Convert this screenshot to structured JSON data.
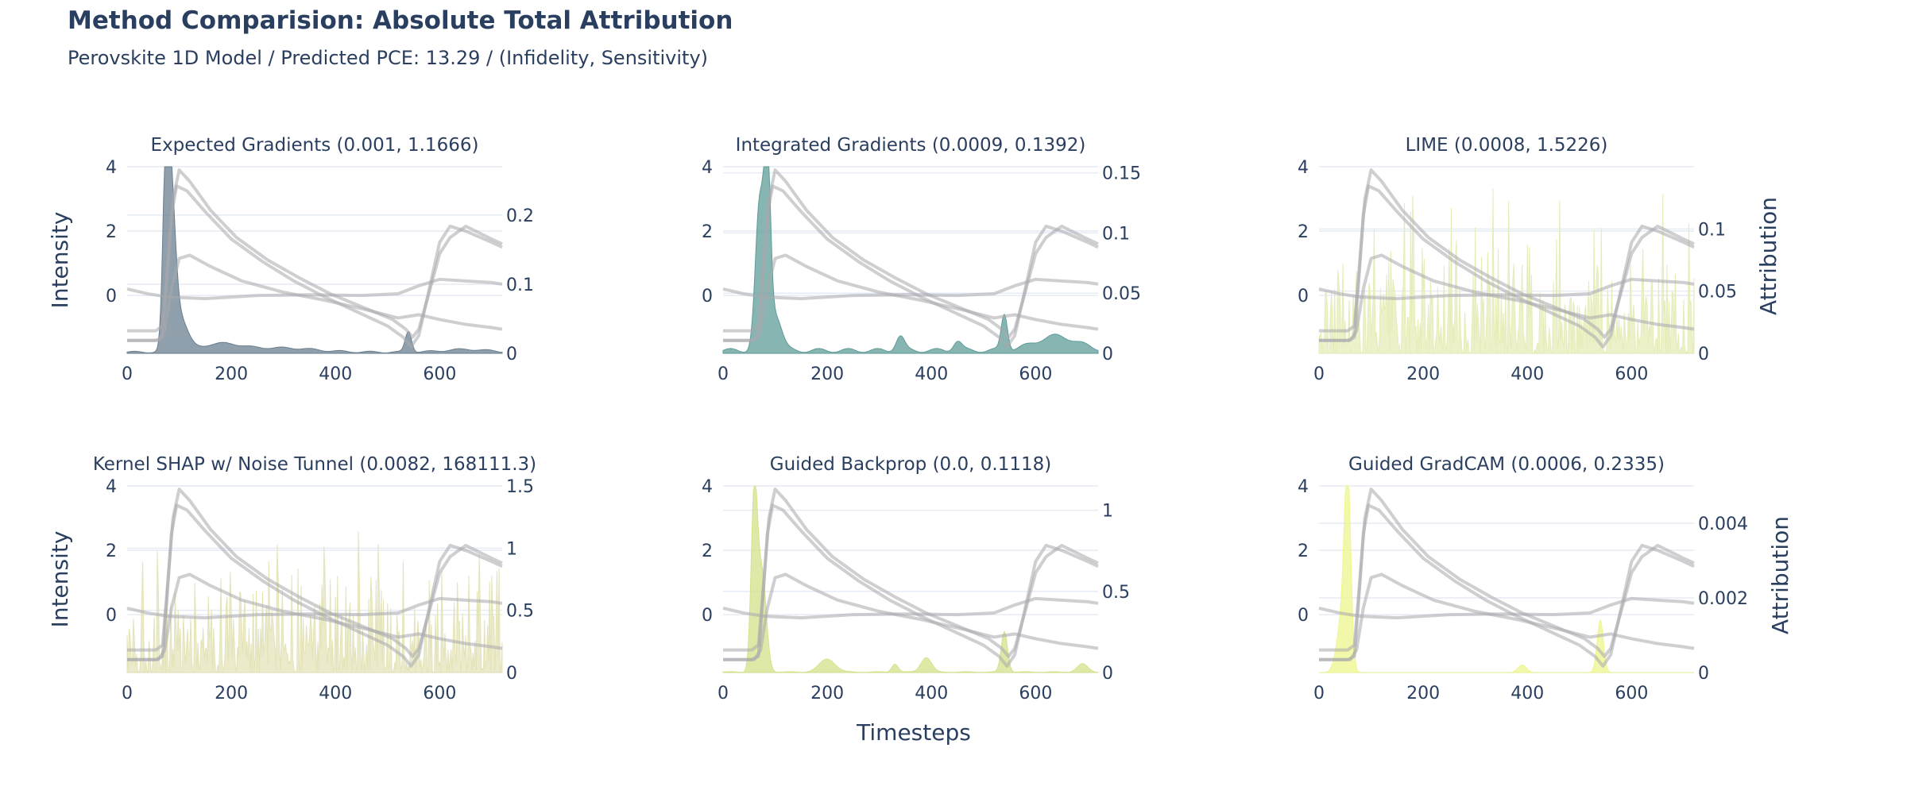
{
  "title": "Method Comparision: Absolute Total Attribution",
  "subtitle": "Perovskite 1D Model / Predicted PCE: 13.29 / (Infidelity, Sensitivity)",
  "xlabel": "Timesteps",
  "left_axis_label": "Intensity",
  "right_axis_label": "Attribution",
  "chart_data": [
    {
      "type": "area",
      "title": "Expected Gradients (0.001, 1.1666)",
      "xlim": [
        0,
        720
      ],
      "ylim_left": [
        -1.8,
        4
      ],
      "ylim_right": [
        0,
        0.27
      ],
      "xticks": [
        0,
        200,
        400,
        600
      ],
      "yticks_left": [
        0,
        2,
        4
      ],
      "yticks_right": [
        0,
        0.1,
        0.2
      ],
      "attribution_color": "#6a7f8f",
      "attribution_peaks": [
        [
          75,
          0.26,
          6
        ],
        [
          85,
          0.19,
          8
        ],
        [
          100,
          0.05,
          15
        ],
        [
          180,
          0.012,
          40
        ],
        [
          300,
          0.006,
          60
        ],
        [
          540,
          0.03,
          6
        ],
        [
          650,
          0.004,
          40
        ]
      ],
      "attribution_floor": 0.003
    },
    {
      "type": "area",
      "title": "Integrated Gradients (0.0009, 0.1392)",
      "xlim": [
        0,
        720
      ],
      "ylim_left": [
        -1.8,
        4
      ],
      "ylim_right": [
        0,
        0.155
      ],
      "xticks": [
        0,
        200,
        400,
        600
      ],
      "yticks_left": [
        0,
        2,
        4
      ],
      "yticks_right": [
        0,
        0.05,
        0.1,
        0.15
      ],
      "attribution_color": "#5f9c98",
      "attribution_peaks": [
        [
          70,
          0.12,
          8
        ],
        [
          85,
          0.15,
          6
        ],
        [
          100,
          0.03,
          12
        ],
        [
          340,
          0.012,
          8
        ],
        [
          450,
          0.008,
          8
        ],
        [
          540,
          0.03,
          6
        ],
        [
          640,
          0.012,
          40
        ]
      ],
      "attribution_floor": 0.004
    },
    {
      "type": "area",
      "title": "LIME (0.0008, 1.5226)",
      "xlim": [
        0,
        720
      ],
      "ylim_left": [
        -1.8,
        4
      ],
      "ylim_right": [
        0,
        0.15
      ],
      "xticks": [
        0,
        200,
        400,
        600
      ],
      "yticks_left": [
        0,
        2,
        4
      ],
      "yticks_right": [
        0,
        0.05,
        0.1
      ],
      "attribution_color": "#e6ecb8",
      "attribution_peaks": [],
      "attribution_noise": 0.14
    },
    {
      "type": "area",
      "title": "Kernel SHAP w/ Noise Tunnel (0.0082, 168111.3)",
      "xlim": [
        0,
        720
      ],
      "ylim_left": [
        -1.8,
        4
      ],
      "ylim_right": [
        0,
        1.5
      ],
      "xticks": [
        0,
        200,
        400,
        600
      ],
      "yticks_left": [
        0,
        2,
        4
      ],
      "yticks_right": [
        0,
        0.5,
        1,
        1.5
      ],
      "attribution_color": "#e4e3b8",
      "attribution_peaks": [],
      "attribution_noise": 1.2
    },
    {
      "type": "area",
      "title": "Guided Backprop (0.0, 0.1118)",
      "xlim": [
        0,
        720
      ],
      "ylim_left": [
        -1.8,
        4
      ],
      "ylim_right": [
        0,
        1.15
      ],
      "xticks": [
        0,
        200,
        400,
        600
      ],
      "yticks_left": [
        0,
        2,
        4
      ],
      "yticks_right": [
        0,
        0.5,
        1
      ],
      "attribution_color": "#d4e28a",
      "attribution_peaks": [
        [
          60,
          1.1,
          6
        ],
        [
          75,
          0.6,
          8
        ],
        [
          200,
          0.08,
          15
        ],
        [
          330,
          0.05,
          6
        ],
        [
          390,
          0.09,
          10
        ],
        [
          540,
          0.25,
          6
        ],
        [
          690,
          0.05,
          10
        ]
      ],
      "attribution_floor": 0.005
    },
    {
      "type": "area",
      "title": "Guided GradCAM (0.0006, 0.2335)",
      "xlim": [
        0,
        720
      ],
      "ylim_left": [
        -1.8,
        4
      ],
      "ylim_right": [
        0,
        0.005
      ],
      "xticks": [
        0,
        200,
        400,
        600
      ],
      "yticks_left": [
        0,
        2,
        4
      ],
      "yticks_right": [
        0,
        0.002,
        0.004
      ],
      "attribution_color": "#eef58e",
      "attribution_peaks": [
        [
          55,
          0.0048,
          6
        ],
        [
          45,
          0.0015,
          10
        ],
        [
          390,
          0.0002,
          8
        ],
        [
          540,
          0.0014,
          6
        ]
      ],
      "attribution_floor": 0
    }
  ],
  "intensity_traces": [
    {
      "x": [
        0,
        55,
        68,
        76,
        85,
        95,
        115,
        150,
        200,
        260,
        320,
        380,
        440,
        500,
        530,
        545,
        560,
        580,
        600,
        620,
        650,
        700,
        720
      ],
      "y": [
        -1.4,
        -1.4,
        -1.3,
        0.4,
        2.5,
        3.4,
        3.25,
        2.6,
        1.75,
        1.05,
        0.45,
        -0.05,
        -0.5,
        -0.95,
        -1.3,
        -1.6,
        -1.25,
        0.2,
        1.65,
        2.15,
        2.0,
        1.65,
        1.5
      ]
    },
    {
      "x": [
        0,
        55,
        68,
        78,
        88,
        100,
        120,
        160,
        210,
        270,
        330,
        390,
        450,
        510,
        535,
        548,
        560,
        580,
        600,
        620,
        650,
        700,
        720
      ],
      "y": [
        -1.1,
        -1.1,
        -0.95,
        1.0,
        3.0,
        3.9,
        3.55,
        2.65,
        1.8,
        1.1,
        0.55,
        0.05,
        -0.35,
        -0.75,
        -1.05,
        -1.3,
        -1.05,
        0.1,
        1.3,
        1.8,
        2.15,
        1.75,
        1.6
      ]
    },
    {
      "x": [
        0,
        60,
        72,
        85,
        100,
        120,
        160,
        220,
        300,
        380,
        460,
        520,
        560,
        600,
        650,
        700,
        720
      ],
      "y": [
        -1.4,
        -1.4,
        -1.1,
        0.2,
        1.15,
        1.25,
        0.9,
        0.45,
        0.1,
        -0.15,
        -0.45,
        -0.7,
        -0.6,
        -0.75,
        -0.9,
        -1.0,
        -1.05
      ]
    },
    {
      "x": [
        0,
        40,
        80,
        150,
        250,
        350,
        450,
        520,
        560,
        600,
        650,
        700,
        720
      ],
      "y": [
        0.2,
        0.05,
        -0.05,
        -0.1,
        0.0,
        0.02,
        0.0,
        0.05,
        0.3,
        0.5,
        0.45,
        0.4,
        0.35
      ]
    }
  ]
}
